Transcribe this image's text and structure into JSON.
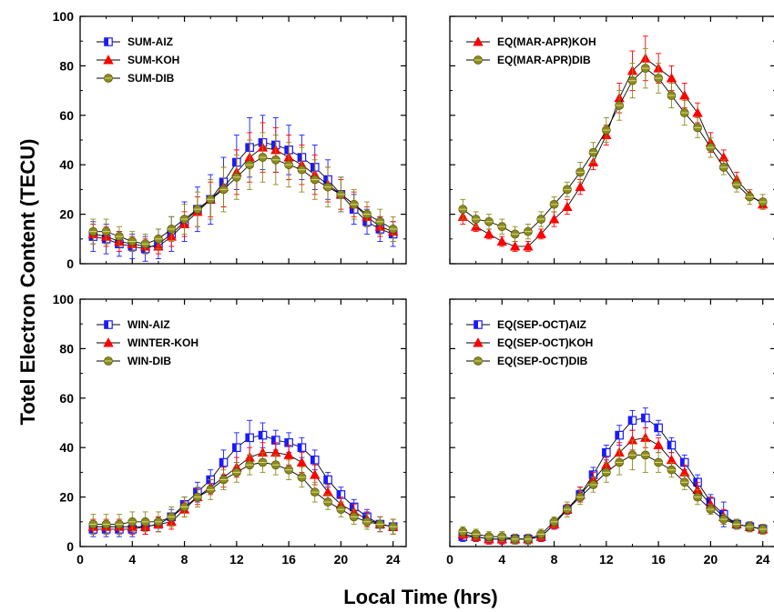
{
  "figure": {
    "ylabel": "Totel Electron Content (TECU)",
    "xlabel": "Local Time (hrs)"
  },
  "colors": {
    "AIZ": "#1a1aff",
    "KOH": "#ff0000",
    "DIB": "#8c8c1a",
    "line": "#000000"
  },
  "chart_data": [
    {
      "type": "line",
      "panel": "top-left",
      "xlim": [
        0,
        25
      ],
      "ylim": [
        0,
        100
      ],
      "xticks": [
        0,
        4,
        8,
        12,
        16,
        20,
        24
      ],
      "yticks": [
        0,
        20,
        40,
        60,
        80,
        100
      ],
      "legend_position": "top-left",
      "x": [
        1,
        2,
        3,
        4,
        5,
        6,
        7,
        8,
        9,
        10,
        11,
        12,
        13,
        14,
        15,
        16,
        17,
        18,
        19,
        20,
        21,
        22,
        23,
        24
      ],
      "series": [
        {
          "name": "SUM-AIZ",
          "marker": "square-half",
          "color": "#1a1aff",
          "values": [
            11,
            10,
            8,
            7,
            6,
            8,
            12,
            17,
            22,
            26,
            33,
            41,
            47,
            49,
            48,
            46,
            43,
            39,
            34,
            28,
            22,
            17,
            14,
            12
          ],
          "errors": [
            6,
            6,
            5,
            5,
            5,
            6,
            7,
            8,
            9,
            10,
            10,
            11,
            12,
            11,
            11,
            10,
            9,
            9,
            8,
            7,
            6,
            5,
            5,
            5
          ]
        },
        {
          "name": "SUM-KOH",
          "marker": "triangle",
          "color": "#ff0000",
          "values": [
            12,
            11,
            9,
            8,
            7,
            7,
            11,
            16,
            21,
            26,
            31,
            37,
            43,
            47,
            46,
            43,
            40,
            36,
            32,
            28,
            24,
            19,
            15,
            13
          ],
          "errors": [
            4,
            4,
            4,
            3,
            3,
            3,
            4,
            5,
            6,
            7,
            8,
            9,
            10,
            10,
            9,
            9,
            8,
            8,
            7,
            6,
            5,
            4,
            4,
            4
          ]
        },
        {
          "name": "SUM-DIB",
          "marker": "circle",
          "color": "#8c8c1a",
          "values": [
            13,
            13,
            11,
            9,
            8,
            10,
            14,
            18,
            22,
            26,
            30,
            35,
            40,
            43,
            42,
            40,
            38,
            34,
            31,
            28,
            24,
            20,
            17,
            14
          ],
          "errors": [
            5,
            5,
            4,
            4,
            4,
            4,
            5,
            6,
            7,
            8,
            9,
            9,
            10,
            10,
            10,
            9,
            9,
            8,
            8,
            7,
            6,
            5,
            5,
            5
          ]
        }
      ]
    },
    {
      "type": "line",
      "panel": "top-right",
      "xlim": [
        0,
        25
      ],
      "ylim": [
        0,
        100
      ],
      "xticks": [
        0,
        4,
        8,
        12,
        16,
        20,
        24
      ],
      "yticks": [
        0,
        20,
        40,
        60,
        80,
        100
      ],
      "legend_position": "top-left",
      "x": [
        1,
        2,
        3,
        4,
        5,
        6,
        7,
        8,
        9,
        10,
        11,
        12,
        13,
        14,
        15,
        16,
        17,
        18,
        19,
        20,
        21,
        22,
        23,
        24
      ],
      "series": [
        {
          "name": "EQ(MAR-APR)KOH",
          "marker": "triangle",
          "color": "#ff0000",
          "values": [
            19,
            15,
            12,
            9,
            7,
            7,
            12,
            18,
            23,
            31,
            41,
            52,
            67,
            78,
            83,
            79,
            75,
            68,
            61,
            49,
            43,
            34,
            28,
            24
          ],
          "errors": [
            3,
            2,
            2,
            2,
            2,
            2,
            2,
            3,
            3,
            3,
            3,
            4,
            6,
            8,
            9,
            6,
            5,
            5,
            4,
            4,
            3,
            3,
            2,
            2
          ]
        },
        {
          "name": "EQ(MAR-APR)DIB",
          "marker": "circle",
          "color": "#8c8c1a",
          "values": [
            22,
            18,
            17,
            15,
            12,
            13,
            18,
            24,
            30,
            37,
            45,
            54,
            64,
            74,
            79,
            75,
            68,
            61,
            55,
            47,
            39,
            32,
            27,
            25
          ],
          "errors": [
            4,
            3,
            3,
            3,
            3,
            3,
            3,
            3,
            3,
            4,
            4,
            5,
            6,
            7,
            8,
            6,
            5,
            5,
            4,
            4,
            3,
            3,
            3,
            3
          ]
        }
      ]
    },
    {
      "type": "line",
      "panel": "bottom-left",
      "xlim": [
        0,
        25
      ],
      "ylim": [
        0,
        100
      ],
      "xticks": [
        0,
        4,
        8,
        12,
        16,
        20,
        24
      ],
      "yticks": [
        0,
        20,
        40,
        60,
        80,
        100
      ],
      "legend_position": "top-left",
      "x": [
        1,
        2,
        3,
        4,
        5,
        6,
        7,
        8,
        9,
        10,
        11,
        12,
        13,
        14,
        15,
        16,
        17,
        18,
        19,
        20,
        21,
        22,
        23,
        24
      ],
      "series": [
        {
          "name": "WIN-AIZ",
          "marker": "square-half",
          "color": "#1a1aff",
          "values": [
            7,
            7,
            7,
            7,
            8,
            9,
            12,
            17,
            22,
            27,
            34,
            40,
            44,
            45,
            43,
            42,
            40,
            35,
            27,
            21,
            16,
            12,
            9,
            8
          ],
          "errors": [
            3,
            3,
            3,
            3,
            3,
            3,
            3,
            3,
            4,
            4,
            5,
            6,
            7,
            5,
            4,
            4,
            4,
            4,
            3,
            3,
            3,
            3,
            3,
            3
          ]
        },
        {
          "name": "WINTER-KOH",
          "marker": "triangle",
          "color": "#ff0000",
          "values": [
            8,
            8,
            8,
            8,
            8,
            9,
            10,
            15,
            20,
            24,
            28,
            32,
            36,
            38,
            38,
            37,
            34,
            29,
            22,
            17,
            14,
            11,
            9,
            8
          ],
          "errors": [
            3,
            3,
            3,
            3,
            3,
            3,
            3,
            3,
            3,
            3,
            4,
            4,
            4,
            4,
            4,
            4,
            4,
            4,
            3,
            3,
            3,
            3,
            3,
            3
          ]
        },
        {
          "name": "WIN-DIB",
          "marker": "circle",
          "color": "#8c8c1a",
          "values": [
            9,
            9,
            9,
            10,
            10,
            10,
            12,
            16,
            20,
            23,
            27,
            30,
            33,
            34,
            33,
            31,
            28,
            22,
            18,
            15,
            12,
            10,
            9,
            8
          ],
          "errors": [
            4,
            4,
            4,
            4,
            4,
            4,
            4,
            4,
            4,
            4,
            4,
            4,
            4,
            4,
            4,
            4,
            4,
            4,
            3,
            3,
            3,
            3,
            3,
            3
          ]
        }
      ]
    },
    {
      "type": "line",
      "panel": "bottom-right",
      "xlim": [
        0,
        25
      ],
      "ylim": [
        0,
        100
      ],
      "xticks": [
        0,
        4,
        8,
        12,
        16,
        20,
        24
      ],
      "yticks": [
        0,
        20,
        40,
        60,
        80,
        100
      ],
      "legend_position": "top-left",
      "x": [
        1,
        2,
        3,
        4,
        5,
        6,
        7,
        8,
        9,
        10,
        11,
        12,
        13,
        14,
        15,
        16,
        17,
        18,
        19,
        20,
        21,
        22,
        23,
        24
      ],
      "series": [
        {
          "name": "EQ(SEP-OCT)AIZ",
          "marker": "square-half",
          "color": "#1a1aff",
          "values": [
            4,
            4,
            3,
            3,
            3,
            3,
            4,
            9,
            15,
            21,
            29,
            38,
            45,
            51,
            52,
            48,
            41,
            34,
            26,
            18,
            13,
            9,
            8,
            7
          ],
          "errors": [
            2,
            2,
            2,
            2,
            2,
            2,
            2,
            2,
            2,
            3,
            3,
            3,
            4,
            4,
            4,
            3,
            3,
            3,
            3,
            3,
            5,
            2,
            2,
            2
          ]
        },
        {
          "name": "EQ(SEP-OCT)KOH",
          "marker": "triangle",
          "color": "#ff0000",
          "values": [
            5,
            4,
            3,
            3,
            3,
            3,
            4,
            9,
            15,
            21,
            27,
            33,
            38,
            43,
            44,
            41,
            35,
            30,
            23,
            17,
            12,
            9,
            8,
            7
          ],
          "errors": [
            2,
            2,
            2,
            2,
            2,
            2,
            2,
            2,
            2,
            3,
            3,
            3,
            4,
            4,
            4,
            3,
            3,
            3,
            3,
            3,
            3,
            2,
            2,
            2
          ]
        },
        {
          "name": "EQ(SEP-OCT)DIB",
          "marker": "circle",
          "color": "#8c8c1a",
          "values": [
            6,
            5,
            4,
            4,
            3,
            3,
            5,
            10,
            15,
            20,
            25,
            30,
            34,
            37,
            37,
            34,
            31,
            26,
            20,
            15,
            11,
            9,
            8,
            7
          ],
          "errors": [
            2,
            2,
            2,
            2,
            2,
            2,
            2,
            2,
            3,
            3,
            3,
            4,
            5,
            6,
            7,
            4,
            3,
            3,
            3,
            2,
            2,
            2,
            2,
            2
          ]
        }
      ]
    }
  ]
}
